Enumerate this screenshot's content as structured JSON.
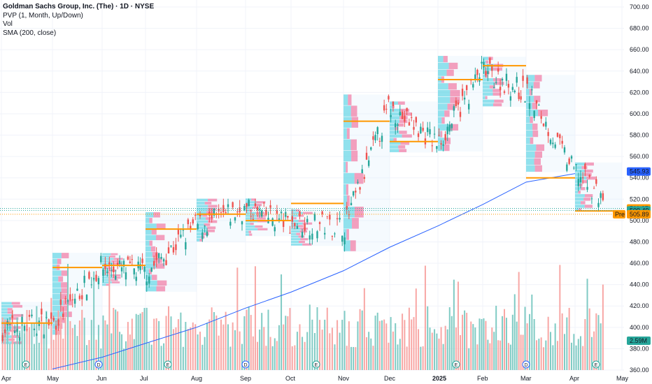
{
  "legend": {
    "title": "Goldman Sachs Group, Inc. (The) · 1D · NYSE",
    "pvp": "PVP (1, Month, Up/Down)",
    "vol": "Vol",
    "sma": "SMA (200, close)"
  },
  "badges": {
    "sma_value": "545.93",
    "price_high": "511.37",
    "price_last": "509.49",
    "pre_label": "Pre",
    "pre_value": "505.89",
    "volume": "2.59M"
  },
  "colors": {
    "up": "#26a69a",
    "down": "#ef5350",
    "up_vol": "#80cbc4",
    "down_vol": "#f8a7a5",
    "sma": "#2962ff",
    "poc": "#ff9800",
    "profile_up": "#4dd0e1",
    "profile_down": "#f06292",
    "pre": "#ff9800"
  },
  "chart_data": {
    "type": "candlestick",
    "title": "Goldman Sachs Group, Inc. (The) · 1D · NYSE",
    "ylim": [
      360,
      700
    ],
    "y_ticks": [
      360,
      380,
      400,
      420,
      440,
      460,
      480,
      500,
      520,
      540,
      560,
      580,
      600,
      620,
      640,
      660,
      680,
      700
    ],
    "x_ticks": [
      "Apr",
      "May",
      "Jun",
      "Jul",
      "Aug",
      "Sep",
      "Oct",
      "Nov",
      "Dec",
      "2025",
      "Feb",
      "Mar",
      "Apr",
      "May"
    ],
    "monthly_close": [
      {
        "month": "Apr",
        "close": 405
      },
      {
        "month": "May",
        "close": 456
      },
      {
        "month": "Jun",
        "close": 452
      },
      {
        "month": "Jul",
        "close": 495
      },
      {
        "month": "Aug",
        "close": 510
      },
      {
        "month": "Sep",
        "close": 498
      },
      {
        "month": "Oct",
        "close": 495
      },
      {
        "month": "Nov",
        "close": 605
      },
      {
        "month": "Dec",
        "close": 573
      },
      {
        "month": "2025",
        "close": 640
      },
      {
        "month": "Feb",
        "close": 620
      },
      {
        "month": "Mar",
        "close": 546
      },
      {
        "month": "Apr",
        "close": 505
      }
    ],
    "sma_200": [
      {
        "month": "May",
        "value": 361
      },
      {
        "month": "Jun",
        "value": 372
      },
      {
        "month": "Jul",
        "value": 385
      },
      {
        "month": "Aug",
        "value": 400
      },
      {
        "month": "Sep",
        "value": 418
      },
      {
        "month": "Oct",
        "value": 433
      },
      {
        "month": "Nov",
        "value": 453
      },
      {
        "month": "Dec",
        "value": 475
      },
      {
        "month": "2025",
        "value": 495
      },
      {
        "month": "Feb",
        "value": 515
      },
      {
        "month": "Mar",
        "value": 536
      },
      {
        "month": "Apr",
        "value": 544
      }
    ],
    "series": [
      {
        "name": "SMA (200, close)",
        "last": 545.93
      },
      {
        "name": "Price",
        "last": 509.49
      },
      {
        "name": "Pre",
        "last": 505.89
      }
    ],
    "poc_levels": [
      404,
      456,
      458,
      492,
      506,
      500,
      516,
      593,
      574,
      632,
      645,
      540,
      509
    ],
    "events": [
      "E",
      "D",
      "E",
      "D",
      "E",
      "E",
      "D",
      "E"
    ]
  }
}
